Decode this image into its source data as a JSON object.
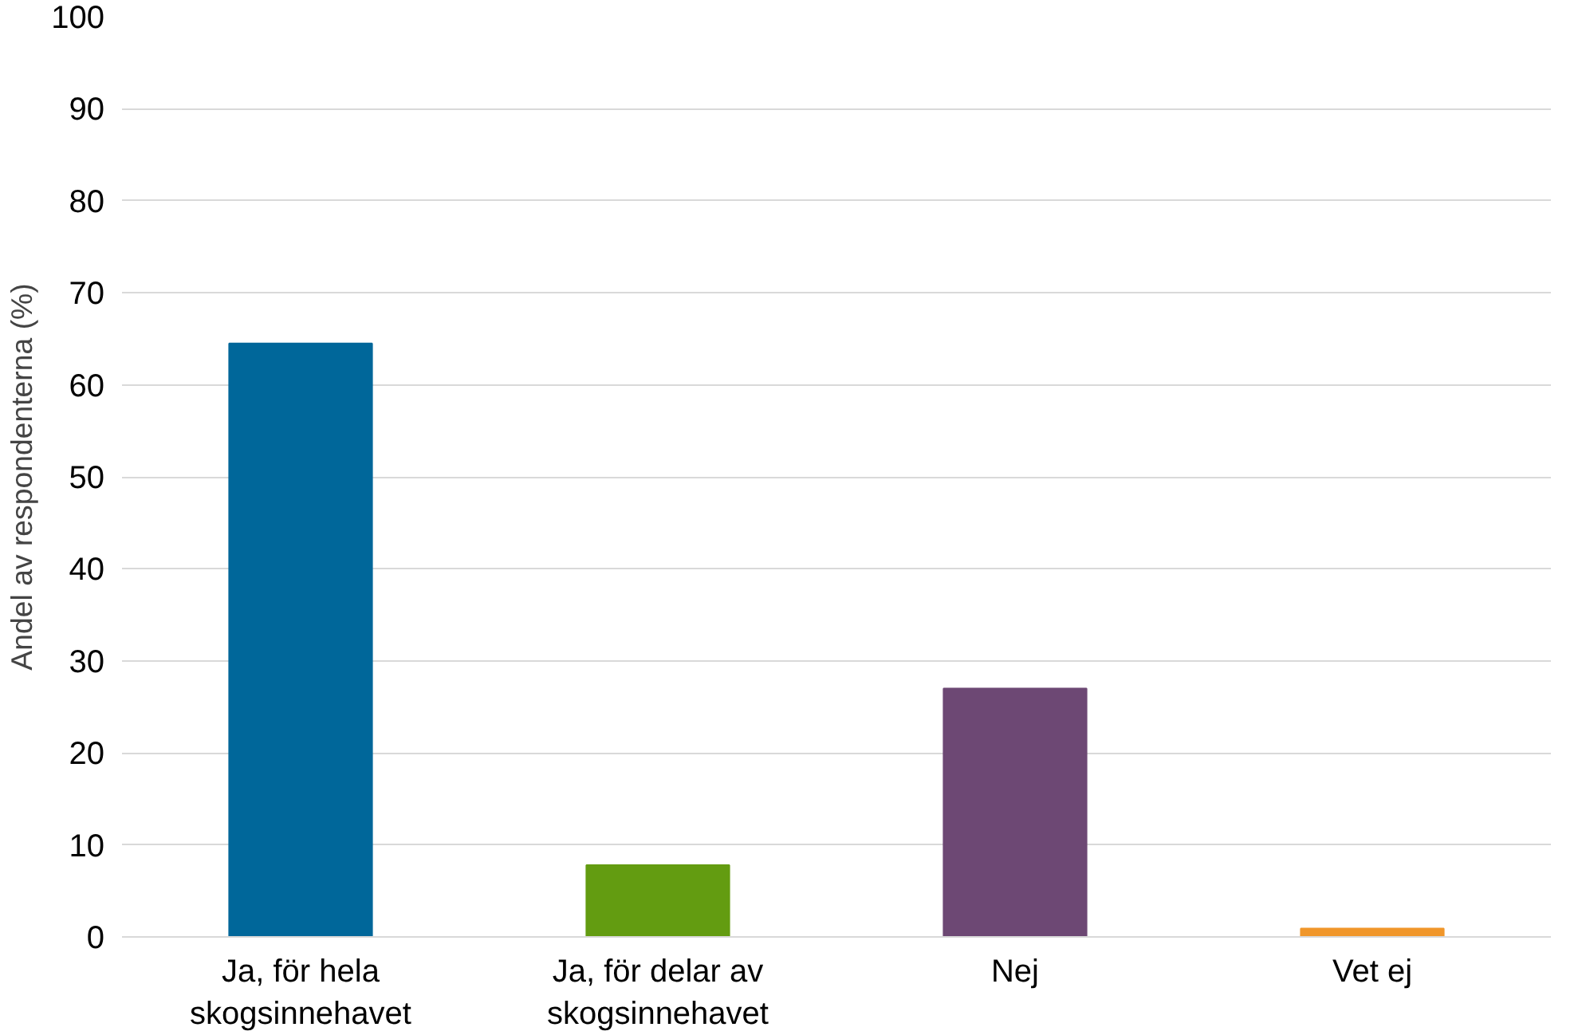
{
  "chart_data": {
    "type": "bar",
    "ylabel": "Andel av respondenterna (%)",
    "categories": [
      "Ja, för hela\nskogsinnehavet",
      "Ja, för delar av\nskogsinnehavet",
      "Nej",
      "Vet ej"
    ],
    "values": [
      64.5,
      7.8,
      27.0,
      0.9
    ],
    "colors": [
      "#00679a",
      "#639c11",
      "#6d4874",
      "#f0962a"
    ],
    "ylim": [
      0,
      100
    ],
    "yticks": [
      0,
      10,
      20,
      30,
      40,
      50,
      60,
      70,
      80,
      90,
      100
    ],
    "grid": "y"
  }
}
